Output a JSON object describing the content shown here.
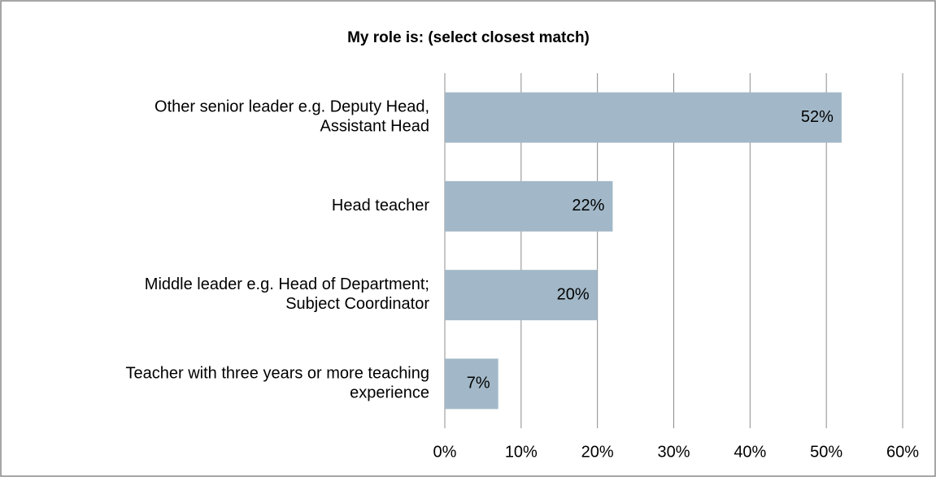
{
  "chart_data": {
    "type": "barh",
    "title": "My role is: (select closest match)",
    "categories": [
      "Other senior leader e.g. Deputy Head,\nAssistant Head",
      "Head teacher",
      "Middle leader e.g. Head of Department;\nSubject Coordinator",
      "Teacher with three years or more teaching\nexperience"
    ],
    "values": [
      52,
      22,
      20,
      7
    ],
    "value_labels": [
      "52%",
      "22%",
      "20%",
      "7%"
    ],
    "color": "#a2b8c8",
    "xlim": [
      0,
      60
    ],
    "xticks": [
      {
        "value": 0,
        "label": "0%"
      },
      {
        "value": 10,
        "label": "10%"
      },
      {
        "value": 20,
        "label": "20%"
      },
      {
        "value": 30,
        "label": "30%"
      },
      {
        "value": 40,
        "label": "40%"
      },
      {
        "value": 50,
        "label": "50%"
      },
      {
        "value": 60,
        "label": "60%"
      }
    ],
    "grid": true
  }
}
